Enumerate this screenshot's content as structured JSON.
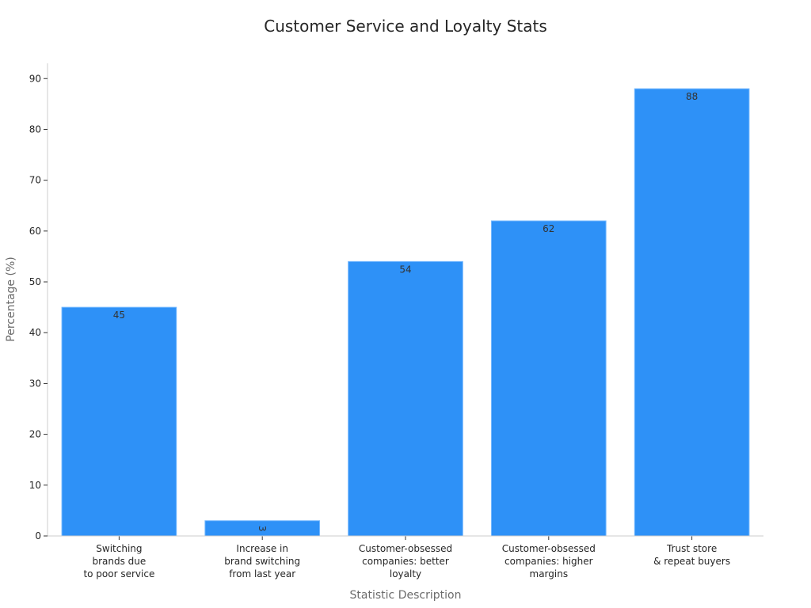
{
  "chart_data": {
    "type": "bar",
    "title": "Customer Service and Loyalty Stats",
    "xlabel": "Statistic Description",
    "ylabel": "Percentage (%)",
    "categories": [
      [
        "Switching",
        "brands due",
        "to poor service"
      ],
      [
        "Increase in",
        "brand switching",
        "from last year"
      ],
      [
        "Customer-obsessed",
        "companies: better",
        "loyalty"
      ],
      [
        "Customer-obsessed",
        "companies: higher",
        "margins"
      ],
      [
        "Trust store",
        "& repeat buyers"
      ]
    ],
    "values": [
      45,
      3,
      54,
      62,
      88
    ],
    "data_labels": [
      "45",
      "3",
      "54",
      "62",
      "88"
    ],
    "ylim": [
      0,
      93
    ],
    "yticks": [
      0,
      10,
      20,
      30,
      40,
      50,
      60,
      70,
      80,
      90
    ],
    "grid": false,
    "legend": "none",
    "colors": {
      "bar": "#2e91f7",
      "bar_edge": "#74b8ff",
      "axis": "#cccccc",
      "tick": "#333333",
      "text": "#262626",
      "axis_label": "#6b6b6b"
    }
  }
}
